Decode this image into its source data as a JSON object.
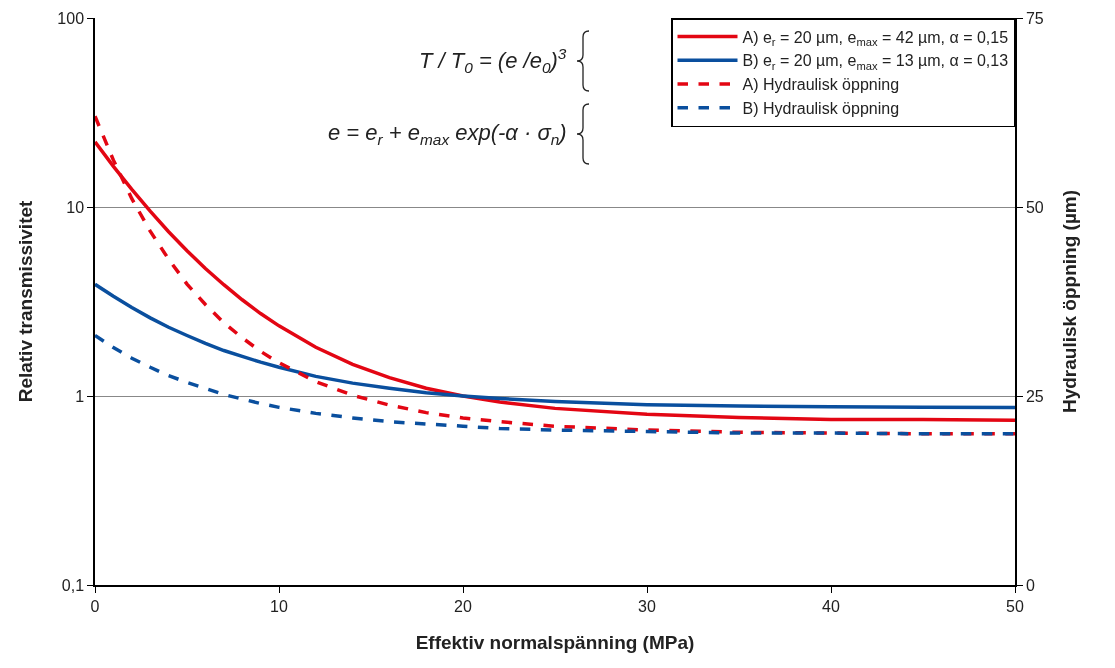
{
  "chart_data": {
    "type": "line",
    "xlabel": "Effektiv normalspänning (MPa)",
    "ylabel": "Relativ transmissivitet",
    "y2label": "Hydraulisk öppning (µm)",
    "x": [
      0,
      1,
      2,
      3,
      4,
      5,
      6,
      7,
      8,
      9,
      10,
      12,
      14,
      16,
      18,
      20,
      22,
      25,
      30,
      35,
      40,
      45,
      50
    ],
    "series": [
      {
        "name": "A) e$_{r}$ = 20 µm, e$_{max}$ = 42 µm, α = 0,15",
        "color": "#e30613",
        "line_style": "solid",
        "values": [
          22.1,
          16.4,
          12.4,
          9.5,
          7.4,
          5.87,
          4.73,
          3.88,
          3.23,
          2.73,
          2.35,
          1.81,
          1.47,
          1.25,
          1.1,
          1.0,
          0.93,
          0.86,
          0.8,
          0.77,
          0.75,
          0.75,
          0.745
        ]
      },
      {
        "name": "B) e$_{r}$ = 20 µm, e$_{max}$ = 13 µm, α = 0,13",
        "color": "#0a4f9e",
        "line_style": "solid",
        "values": [
          3.9,
          3.37,
          2.94,
          2.59,
          2.31,
          2.09,
          1.9,
          1.74,
          1.62,
          1.51,
          1.42,
          1.27,
          1.17,
          1.1,
          1.04,
          1.0,
          0.97,
          0.935,
          0.9,
          0.886,
          0.877,
          0.873,
          0.87
        ]
      },
      {
        "name": "A) Hydraulisk öppning",
        "color": "#e30613",
        "line_style": "dashed",
        "axis": "y2",
        "values": [
          62,
          56.2,
          51.1,
          46.8,
          43.1,
          39.8,
          37.1,
          34.7,
          32.7,
          30.9,
          29.4,
          26.9,
          25.1,
          23.8,
          22.8,
          22.1,
          21.6,
          21,
          20.5,
          20.2,
          20.1,
          20,
          20
        ]
      },
      {
        "name": "B) Hydraulisk öppning",
        "color": "#0a4f9e",
        "line_style": "dashed",
        "axis": "y2",
        "values": [
          33,
          31.4,
          30,
          28.8,
          27.7,
          26.8,
          26,
          25.2,
          24.6,
          24,
          23.5,
          22.7,
          22.1,
          21.6,
          21.3,
          21,
          20.7,
          20.5,
          20.3,
          20.1,
          20.1,
          20,
          20
        ]
      }
    ],
    "xlim": [
      0,
      50
    ],
    "xticks": [
      0,
      10,
      20,
      30,
      40,
      50
    ],
    "log": "y",
    "ylim": [
      0.1,
      100
    ],
    "yticks": [
      {
        "value": 0.1,
        "label": "0,1"
      },
      1,
      10,
      100
    ],
    "y2lim": [
      0,
      75
    ],
    "y2ticks": [
      0,
      25,
      50,
      75
    ],
    "grid": "y",
    "legend": "top right",
    "marker": "none",
    "annotations": [
      "T / T$_{0}$ = (e /e$_{0}$)$^{3}$",
      "e = e$_{r}$ + e$_{max}$ exp(-α · σ$_{n}$)"
    ]
  }
}
